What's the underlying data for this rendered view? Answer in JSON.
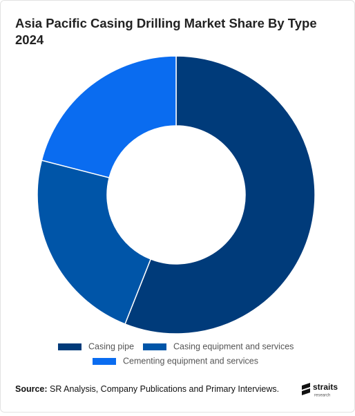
{
  "chart_data": {
    "type": "donut",
    "title": [
      "Asia Pacific Casing Drilling Market Share By Type",
      "2024"
    ],
    "categories": [
      "Casing pipe",
      "Casing equipment and services",
      "Cementing equipment and services"
    ],
    "values": [
      56,
      23,
      21
    ],
    "colors": [
      "#003b7a",
      "#0055a8",
      "#0a6cf0"
    ],
    "source_label": "Source:",
    "source": "SR Analysis, Company Publications and Primary Interviews.",
    "logo": [
      "straits",
      "research"
    ]
  }
}
